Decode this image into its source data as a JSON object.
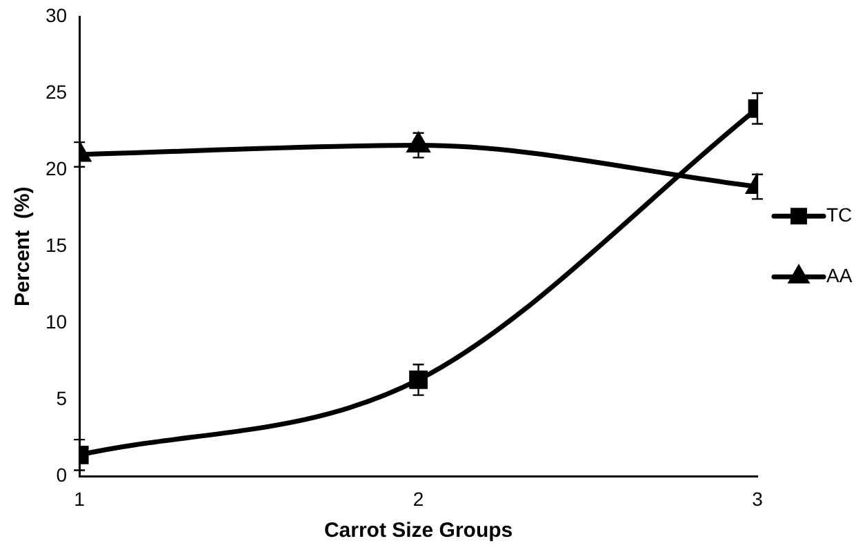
{
  "chart_data": {
    "type": "line",
    "xlabel": "Carrot Size Groups",
    "ylabel": "Percent  (%)",
    "x": [
      1,
      2,
      3
    ],
    "xlim": [
      1,
      3
    ],
    "xticks": [
      1,
      2,
      3
    ],
    "ylim": [
      0,
      30
    ],
    "yticks": [
      0,
      5,
      10,
      15,
      20,
      25,
      30
    ],
    "series": [
      {
        "name": "TC",
        "color": "#000000",
        "marker": "square",
        "values": [
          1.4,
          6.3,
          24
        ],
        "errors": [
          1,
          1,
          1
        ]
      },
      {
        "name": "AA",
        "color": "#000000",
        "marker": "triangle",
        "values": [
          21,
          21.6,
          18.9
        ],
        "errors": [
          0.8,
          0.8,
          0.8
        ]
      }
    ],
    "grid": false,
    "legend": "right"
  }
}
